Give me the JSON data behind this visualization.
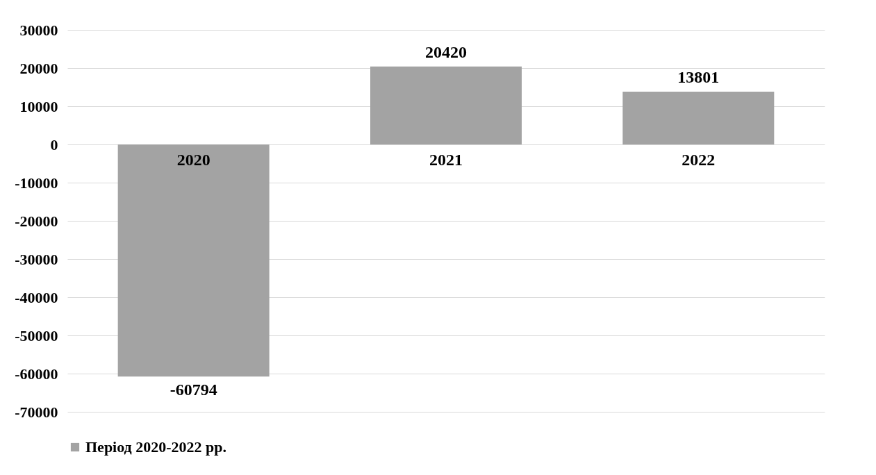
{
  "chart_data": {
    "type": "bar",
    "categories": [
      "2020",
      "2021",
      "2022"
    ],
    "series": [
      {
        "name": "Період 2020-2022 рр.",
        "color": "#a3a3a3",
        "values": [
          -60794,
          20420,
          13801
        ]
      }
    ],
    "ylim": [
      -70000,
      30000
    ],
    "yticks": [
      -70000,
      -60000,
      -50000,
      -40000,
      -30000,
      -20000,
      -10000,
      0,
      10000,
      20000,
      30000
    ],
    "grid": "y",
    "legend": "bottom",
    "data_labels": true
  }
}
